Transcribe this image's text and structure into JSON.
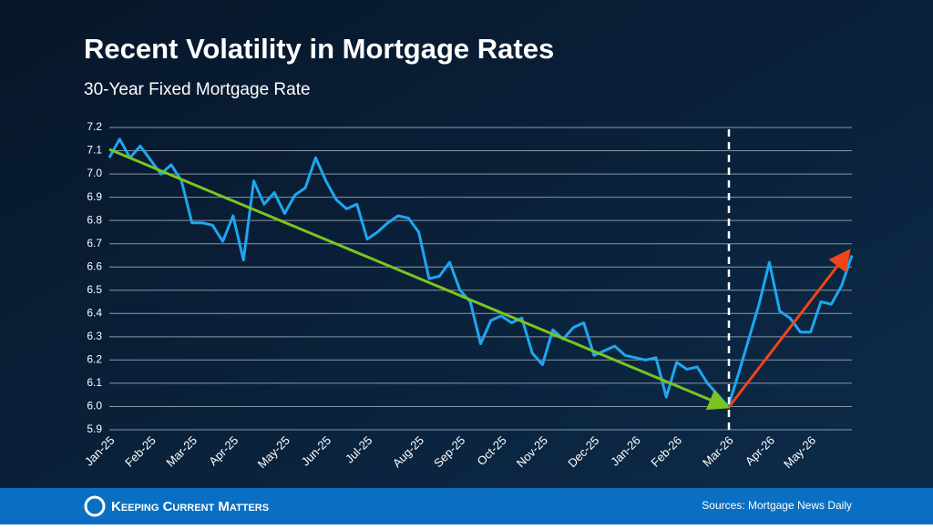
{
  "chart_data": {
    "type": "line",
    "title": "Recent Volatility in Mortgage Rates",
    "subtitle": "30-Year Fixed Mortgage Rate",
    "categories": [
      "Jan-25",
      null,
      null,
      null,
      "Feb-25",
      null,
      null,
      null,
      "Mar-25",
      null,
      null,
      null,
      "Apr-25",
      null,
      null,
      null,
      null,
      "May-25",
      null,
      null,
      null,
      "Jun-25",
      null,
      null,
      null,
      "Jul-25",
      null,
      null,
      null,
      null,
      "Aug-25",
      null,
      null,
      null,
      "Sep-25",
      null,
      null,
      null,
      "Oct-25",
      null,
      null,
      null,
      "Nov-25",
      null,
      null,
      null,
      null,
      "Dec-25",
      null,
      null,
      null,
      "Jan-26",
      null,
      null,
      null,
      "Feb-26",
      null,
      null,
      null,
      null,
      "Mar-26",
      null,
      null,
      null,
      "Apr-26",
      null,
      null,
      null,
      "May-26",
      null,
      null,
      null,
      null
    ],
    "values": [
      7.07,
      7.15,
      7.07,
      7.12,
      7.06,
      7.0,
      7.04,
      6.97,
      6.79,
      6.79,
      6.78,
      6.71,
      6.82,
      6.63,
      6.97,
      6.87,
      6.92,
      6.83,
      6.91,
      6.94,
      7.07,
      6.97,
      6.89,
      6.85,
      6.87,
      6.72,
      6.75,
      6.79,
      6.82,
      6.81,
      6.75,
      6.55,
      6.56,
      6.62,
      6.5,
      6.45,
      6.27,
      6.37,
      6.39,
      6.36,
      6.38,
      6.23,
      6.18,
      6.33,
      6.29,
      6.34,
      6.36,
      6.22,
      6.24,
      6.26,
      6.22,
      6.21,
      6.2,
      6.21,
      6.04,
      6.19,
      6.16,
      6.17,
      6.1,
      6.05,
      6.0,
      6.14,
      6.29,
      6.44,
      6.62,
      6.41,
      6.38,
      6.32,
      6.32,
      6.45,
      6.44,
      6.52,
      6.65
    ],
    "color": "#1ea7f0",
    "ylim": [
      5.9,
      7.2
    ],
    "yticks": [
      5.9,
      {
        "value": 6,
        "label": "6.0"
      },
      6.1,
      6.2,
      6.3,
      6.4,
      6.5,
      6.6,
      6.7,
      6.8,
      6.9,
      {
        "value": 7,
        "label": "7.0"
      },
      7.1,
      7.2
    ],
    "grid": true
  },
  "footer": {
    "logo": "Keeping Current Matters",
    "source": "Sources: Mortgage News Daily"
  }
}
